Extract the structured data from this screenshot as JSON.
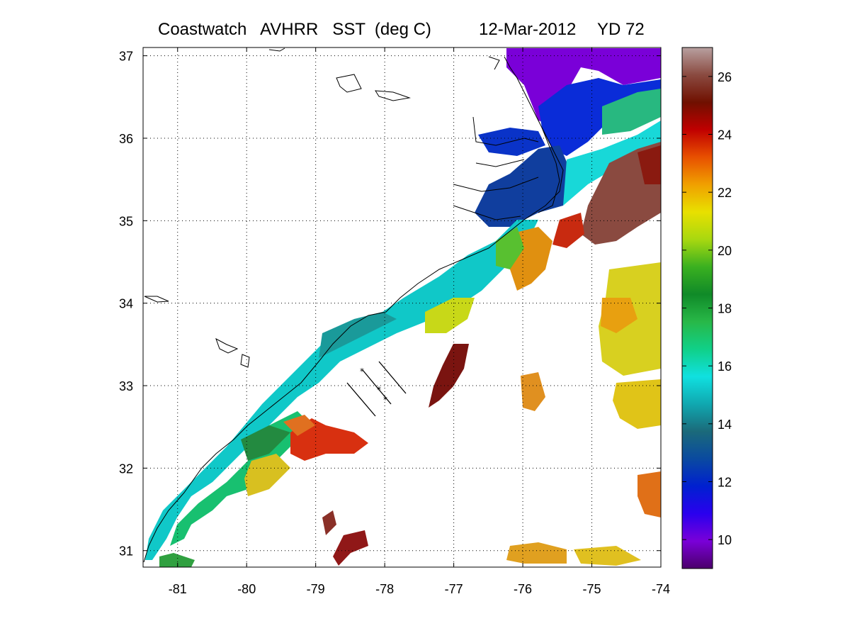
{
  "title": {
    "product": "Coastwatch   AVHRR   SST  (deg C)",
    "date": "12-Mar-2012",
    "yearday": "YD 72"
  },
  "map": {
    "lon_range": [
      -81.5,
      -74
    ],
    "lat_range": [
      30.8,
      37.1
    ],
    "lon_ticks": [
      "-81",
      "-80",
      "-79",
      "-78",
      "-77",
      "-76",
      "-75",
      "-74"
    ],
    "lat_ticks": [
      "37",
      "36",
      "35",
      "34",
      "33",
      "32",
      "31"
    ],
    "grid": true,
    "grid_style": "dotted"
  },
  "colorbar": {
    "range": [
      9,
      27
    ],
    "tick_labels": [
      "26",
      "24",
      "22",
      "20",
      "18",
      "16",
      "14",
      "12",
      "10"
    ],
    "colors": [
      "#4b006b",
      "#7a00d8",
      "#2a00ee",
      "#0020d0",
      "#0a4aa0",
      "#1b6a7a",
      "#10a8b0",
      "#10e0e0",
      "#10d088",
      "#28b848",
      "#108a28",
      "#3ab020",
      "#a8d810",
      "#e8e000",
      "#f0a000",
      "#e85000",
      "#c00000",
      "#701000",
      "#8a4a40",
      "#b8a0a0"
    ]
  }
}
